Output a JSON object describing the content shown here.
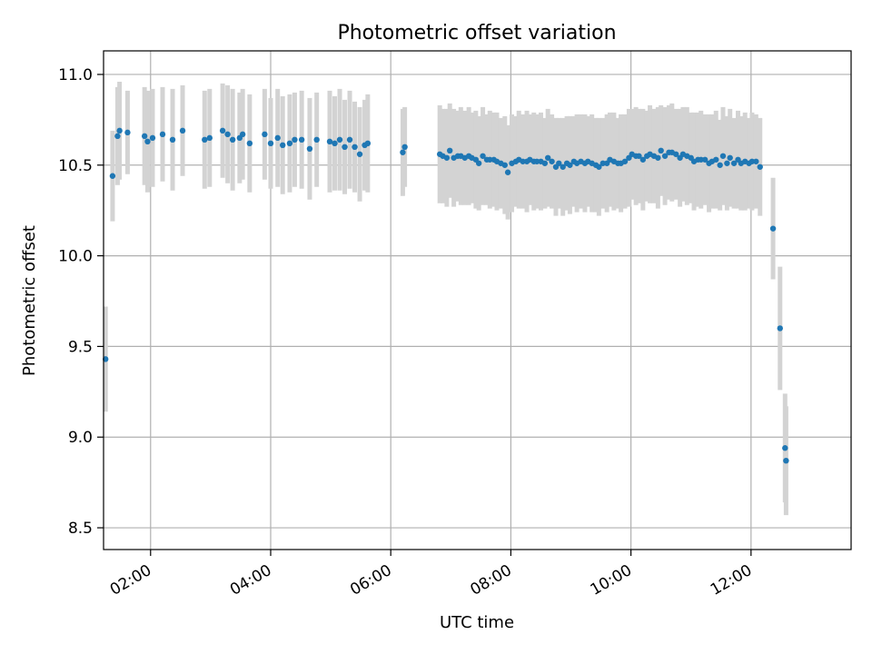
{
  "chart_data": {
    "type": "scatter",
    "title": "Photometric offset variation",
    "xlabel": "UTC time",
    "ylabel": "Photometric offset",
    "xlim": [
      "01:13",
      "13:40"
    ],
    "ylim": [
      8.38,
      11.13
    ],
    "x_ticks": [
      "02:00",
      "04:00",
      "06:00",
      "08:00",
      "10:00",
      "12:00"
    ],
    "y_ticks": [
      8.5,
      9.0,
      9.5,
      10.0,
      10.5,
      11.0
    ],
    "y_tick_labels": [
      "8.5",
      "9.0",
      "9.5",
      "10.0",
      "10.5",
      "11.0"
    ],
    "grid": true,
    "colors": {
      "points": "#1f77b4",
      "error_bars": "#d3d3d3",
      "grid": "#b0b0b0"
    },
    "series": [
      {
        "x": [
          "01:15",
          "01:22",
          "01:27",
          "01:29",
          "01:37",
          "01:54",
          "01:57",
          "02:02",
          "02:12",
          "02:22",
          "02:32",
          "02:54",
          "02:59",
          "03:12",
          "03:17",
          "03:22",
          "03:29",
          "03:32",
          "03:39",
          "03:54",
          "04:00",
          "04:07",
          "04:12",
          "04:19",
          "04:24",
          "04:31",
          "04:39",
          "04:46",
          "04:59",
          "05:04",
          "05:09",
          "05:14",
          "05:19",
          "05:24",
          "05:29",
          "05:34",
          "05:37",
          "06:12",
          "06:14",
          "06:49",
          "06:52",
          "06:56",
          "06:59",
          "07:03",
          "07:07",
          "07:10",
          "07:14",
          "07:18",
          "07:21",
          "07:25",
          "07:28",
          "07:32",
          "07:36",
          "07:39",
          "07:43",
          "07:46",
          "07:50",
          "07:54",
          "07:57",
          "08:01",
          "08:05",
          "08:08",
          "08:12",
          "08:16",
          "08:19",
          "08:23",
          "08:26",
          "08:30",
          "08:34",
          "08:37",
          "08:41",
          "08:45",
          "08:48",
          "08:52",
          "08:56",
          "08:59",
          "09:03",
          "09:06",
          "09:10",
          "09:14",
          "09:17",
          "09:21",
          "09:25",
          "09:28",
          "09:32",
          "09:36",
          "09:39",
          "09:43",
          "09:47",
          "09:50",
          "09:54",
          "09:58",
          "10:01",
          "10:05",
          "10:08",
          "10:12",
          "10:16",
          "10:19",
          "10:23",
          "10:27",
          "10:30",
          "10:34",
          "10:38",
          "10:41",
          "10:45",
          "10:49",
          "10:52",
          "10:56",
          "11:00",
          "11:03",
          "11:07",
          "11:10",
          "11:14",
          "11:18",
          "11:21",
          "11:25",
          "11:29",
          "11:32",
          "11:36",
          "11:39",
          "11:43",
          "11:47",
          "11:50",
          "11:54",
          "11:58",
          "12:01",
          "12:05",
          "12:09",
          "12:22",
          "12:29",
          "12:34",
          "12:35"
        ],
        "y": [
          9.43,
          10.44,
          10.66,
          10.69,
          10.68,
          10.66,
          10.63,
          10.65,
          10.67,
          10.64,
          10.69,
          10.64,
          10.65,
          10.69,
          10.67,
          10.64,
          10.65,
          10.67,
          10.62,
          10.67,
          10.62,
          10.65,
          10.61,
          10.62,
          10.64,
          10.64,
          10.59,
          10.64,
          10.63,
          10.62,
          10.64,
          10.6,
          10.64,
          10.6,
          10.56,
          10.61,
          10.62,
          10.57,
          10.6,
          10.56,
          10.55,
          10.54,
          10.58,
          10.54,
          10.55,
          10.55,
          10.54,
          10.55,
          10.54,
          10.53,
          10.51,
          10.55,
          10.53,
          10.53,
          10.53,
          10.52,
          10.51,
          10.5,
          10.46,
          10.51,
          10.52,
          10.53,
          10.52,
          10.52,
          10.53,
          10.52,
          10.52,
          10.52,
          10.51,
          10.54,
          10.52,
          10.49,
          10.51,
          10.49,
          10.51,
          10.5,
          10.52,
          10.51,
          10.52,
          10.51,
          10.52,
          10.51,
          10.5,
          10.49,
          10.51,
          10.51,
          10.53,
          10.52,
          10.51,
          10.51,
          10.52,
          10.54,
          10.56,
          10.55,
          10.55,
          10.53,
          10.55,
          10.56,
          10.55,
          10.54,
          10.58,
          10.55,
          10.57,
          10.57,
          10.56,
          10.54,
          10.56,
          10.55,
          10.54,
          10.52,
          10.53,
          10.53,
          10.53,
          10.51,
          10.52,
          10.53,
          10.5,
          10.55,
          10.51,
          10.54,
          10.51,
          10.53,
          10.51,
          10.52,
          10.51,
          10.52,
          10.52,
          10.49,
          10.15,
          9.6,
          8.94,
          8.87
        ],
        "err": [
          0.29,
          0.25,
          0.27,
          0.27,
          0.23,
          0.27,
          0.28,
          0.27,
          0.26,
          0.28,
          0.25,
          0.27,
          0.27,
          0.26,
          0.27,
          0.28,
          0.25,
          0.25,
          0.27,
          0.25,
          0.25,
          0.27,
          0.27,
          0.27,
          0.26,
          0.27,
          0.28,
          0.26,
          0.28,
          0.26,
          0.28,
          0.26,
          0.27,
          0.25,
          0.26,
          0.25,
          0.27,
          0.24,
          0.22,
          0.27,
          0.26,
          0.27,
          0.26,
          0.27,
          0.25,
          0.27,
          0.26,
          0.27,
          0.25,
          0.27,
          0.26,
          0.27,
          0.25,
          0.27,
          0.26,
          0.27,
          0.25,
          0.27,
          0.26,
          0.27,
          0.25,
          0.27,
          0.26,
          0.28,
          0.25,
          0.27,
          0.26,
          0.27,
          0.25,
          0.27,
          0.26,
          0.27,
          0.25,
          0.27,
          0.26,
          0.27,
          0.25,
          0.27,
          0.26,
          0.27,
          0.25,
          0.27,
          0.26,
          0.27,
          0.25,
          0.27,
          0.26,
          0.27,
          0.25,
          0.27,
          0.26,
          0.27,
          0.25,
          0.27,
          0.26,
          0.28,
          0.25,
          0.27,
          0.26,
          0.28,
          0.25,
          0.27,
          0.26,
          0.27,
          0.25,
          0.27,
          0.26,
          0.27,
          0.25,
          0.27,
          0.26,
          0.27,
          0.25,
          0.27,
          0.26,
          0.27,
          0.25,
          0.27,
          0.26,
          0.27,
          0.25,
          0.27,
          0.26,
          0.27,
          0.25,
          0.27,
          0.26,
          0.27,
          0.28,
          0.34,
          0.3,
          0.3
        ]
      }
    ]
  }
}
